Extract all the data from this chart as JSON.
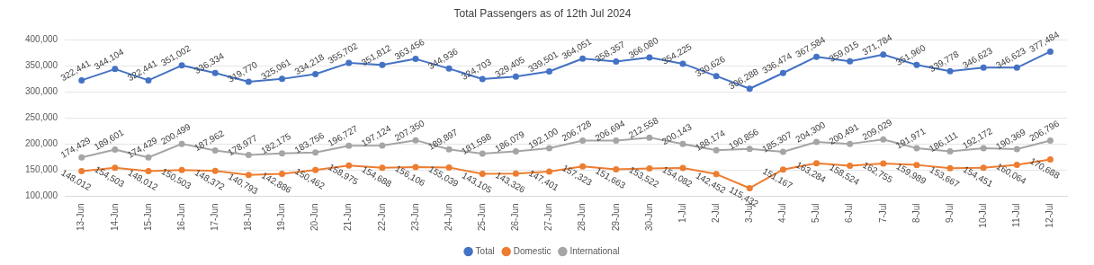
{
  "chart_data": {
    "type": "line",
    "title": "Total Passengers as of 12th Jul 2024",
    "categories": [
      "13-Jun",
      "14-Jun",
      "15-Jun",
      "16-Jun",
      "17-Jun",
      "18-Jun",
      "19-Jun",
      "20-Jun",
      "21-Jun",
      "22-Jun",
      "23-Jun",
      "24-Jun",
      "25-Jun",
      "26-Jun",
      "27-Jun",
      "28-Jun",
      "29-Jun",
      "30-Jun",
      "1-Jul",
      "2-Jul",
      "3-Jul",
      "4-Jul",
      "5-Jul",
      "6-Jul",
      "7-Jul",
      "8-Jul",
      "9-Jul",
      "10-Jul",
      "11-Jul",
      "12-Jul"
    ],
    "series": [
      {
        "name": "Total",
        "color": "#4472c4",
        "values": [
          322441,
          344104,
          322441,
          351002,
          336334,
          319770,
          325061,
          334218,
          355702,
          351812,
          363456,
          344936,
          324703,
          329405,
          339501,
          364051,
          358357,
          366080,
          354225,
          330626,
          306288,
          336474,
          367584,
          359015,
          371784,
          351960,
          339778,
          346623,
          346623,
          377484
        ],
        "value_labels": [
          "322,441",
          "344,104",
          "322,441",
          "351,002",
          "336,334",
          "319,770",
          "325,061",
          "334,218",
          "355,702",
          "351,812",
          "363,456",
          "344,936",
          "324,703",
          "329,405",
          "339,501",
          "364,051",
          "358,357",
          "366,080",
          "354,225",
          "330,626",
          "306,288",
          "336,474",
          "367,584",
          "359,015",
          "371,784",
          "351,960",
          "339,778",
          "346,623",
          "346,623",
          "377,484"
        ]
      },
      {
        "name": "Domestic",
        "color": "#ed7d31",
        "values": [
          148012,
          154503,
          148012,
          150503,
          148372,
          140793,
          142886,
          150462,
          158975,
          154688,
          156106,
          155039,
          143105,
          143326,
          147401,
          157323,
          151663,
          153522,
          154082,
          142452,
          115432,
          151167,
          163284,
          158524,
          162755,
          159989,
          153667,
          154451,
          160064,
          170688
        ],
        "value_labels": [
          "148,012",
          "154,503",
          "148,012",
          "150,503",
          "148,372",
          "140,793",
          "142,886",
          "150,462",
          "158,975",
          "154,688",
          "156,106",
          "155,039",
          "143,105",
          "143,326",
          "147,401",
          "157,323",
          "151,663",
          "153,522",
          "154,082",
          "142,452",
          "115,432",
          "151,167",
          "163,284",
          "158,524",
          "162,755",
          "159,989",
          "153,667",
          "154,451",
          "160,064",
          "170,688"
        ]
      },
      {
        "name": "International",
        "color": "#a5a5a5",
        "values": [
          174429,
          189601,
          174429,
          200499,
          187962,
          178977,
          182175,
          183756,
          196727,
          197124,
          207350,
          189897,
          181598,
          186079,
          192100,
          206728,
          206694,
          212558,
          200143,
          188174,
          190856,
          185307,
          204300,
          200491,
          209029,
          191971,
          186111,
          192172,
          190369,
          206796
        ],
        "value_labels": [
          "174,429",
          "189,601",
          "174,429",
          "200,499",
          "187,962",
          "178,977",
          "182,175",
          "183,756",
          "196,727",
          "197,124",
          "207,350",
          "189,897",
          "181,598",
          "186,079",
          "192,100",
          "206,728",
          "206,694",
          "212,558",
          "200,143",
          "188,174",
          "190,856",
          "185,307",
          "204,300",
          "200,491",
          "209,029",
          "191,971",
          "186,111",
          "192,172",
          "190,369",
          "206,796"
        ]
      }
    ],
    "ylim": [
      100000,
      400000
    ],
    "yticks": [
      {
        "value": 100000,
        "label": "100,000"
      },
      {
        "value": 150000,
        "label": "150,000"
      },
      {
        "value": 200000,
        "label": "200,000"
      },
      {
        "value": 250000,
        "label": "250,000"
      },
      {
        "value": 300000,
        "label": "300,000"
      },
      {
        "value": 350000,
        "label": "350,000"
      },
      {
        "value": 400000,
        "label": "400,000"
      }
    ],
    "grid": "y",
    "legend": "bottom",
    "marker": "circle",
    "line_style": "solid"
  }
}
